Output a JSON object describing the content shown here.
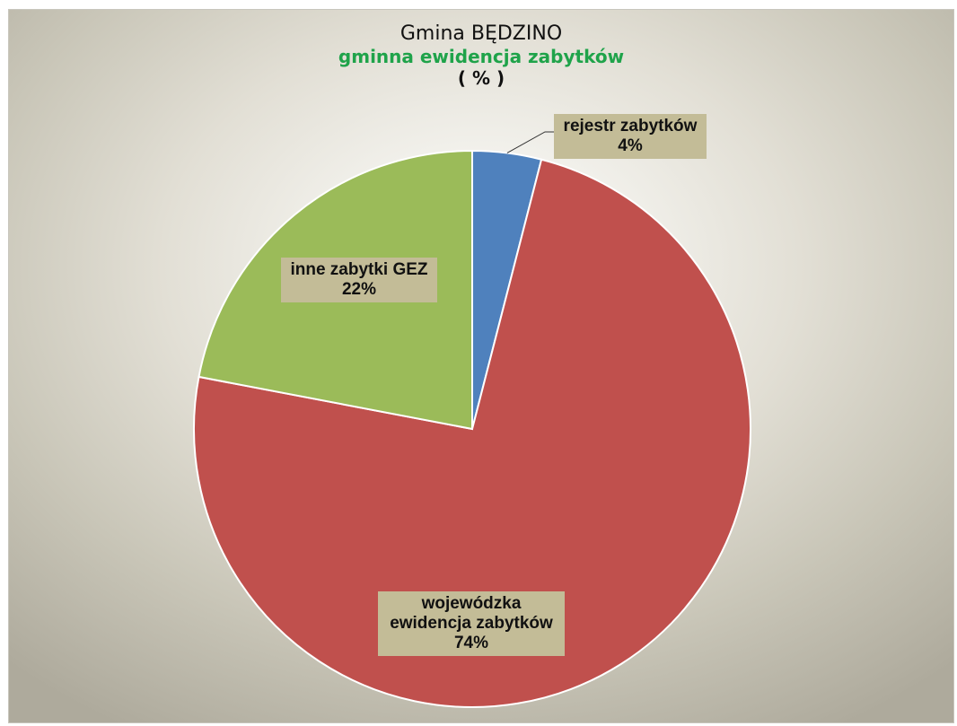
{
  "chart_data": {
    "type": "pie",
    "title": "Gmina BĘDZINO",
    "subtitle": "gminna ewidencja zabytków",
    "unit_label": "( % )",
    "slices": [
      {
        "name": "rejestr zabytków",
        "value": 4,
        "value_label": "4%",
        "color": "#4f81bd"
      },
      {
        "name": "wojewódzka ewidencja zabytków",
        "name_lines": [
          "wojewódzka",
          "ewidencja zabytków"
        ],
        "value": 74,
        "value_label": "74%",
        "color": "#c0504d"
      },
      {
        "name": "inne zabytki GEZ",
        "value": 22,
        "value_label": "22%",
        "color": "#9bbb59"
      }
    ],
    "start_angle": "12 o'clock",
    "direction": "clockwise",
    "label_background": "#c3bc97"
  }
}
